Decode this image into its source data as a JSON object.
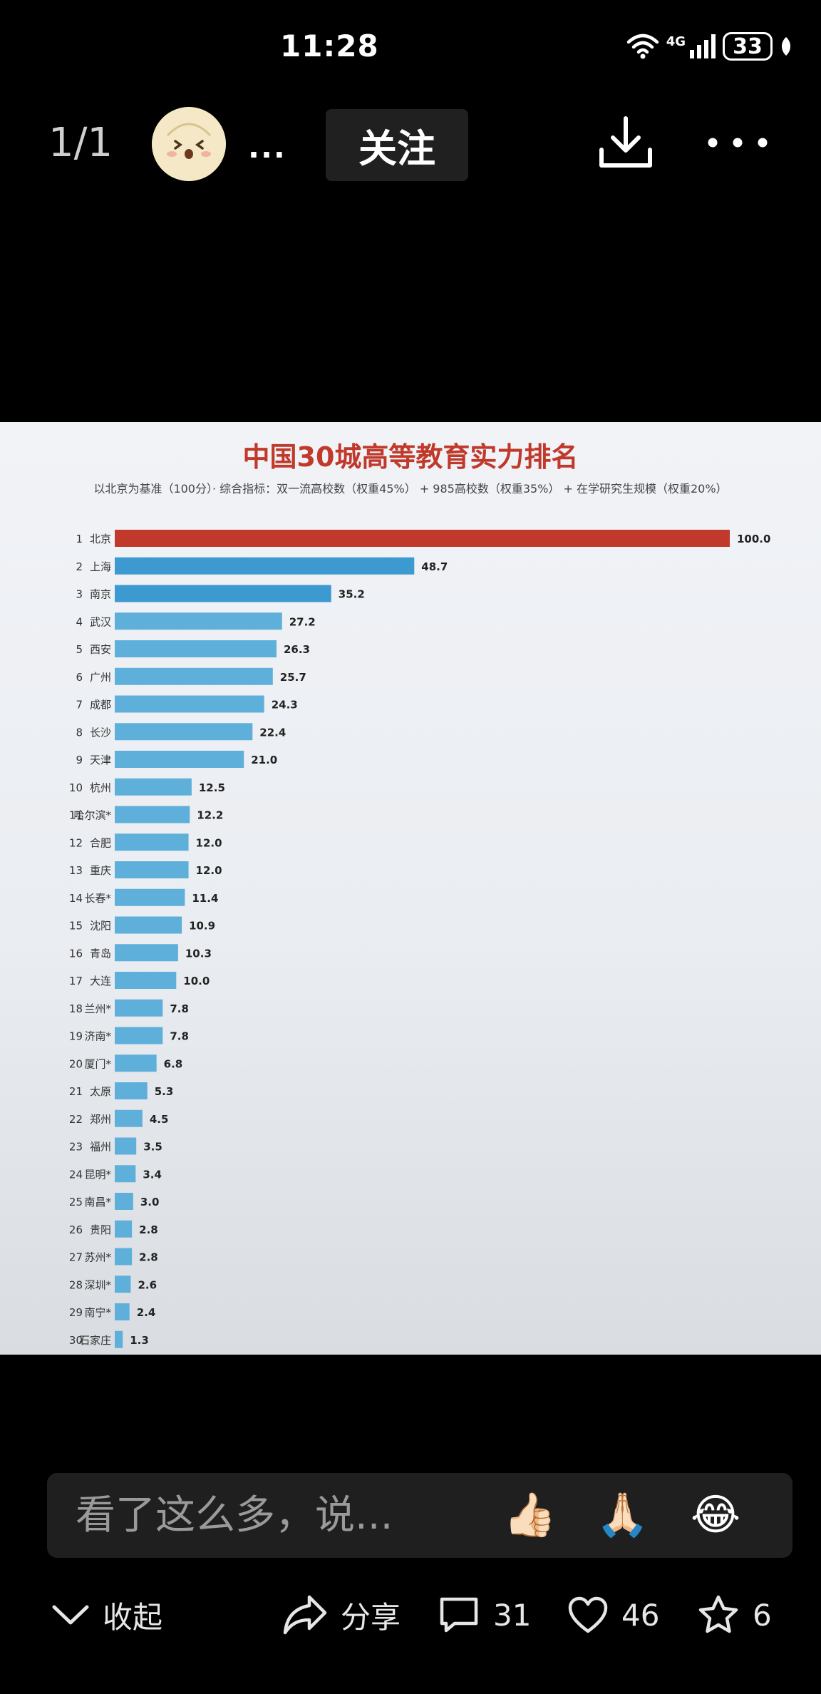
{
  "status_bar": {
    "time": "11:28",
    "network": "4G",
    "battery": "33"
  },
  "top_bar": {
    "page_indicator": "1/1",
    "more": "...",
    "follow_label": "关注"
  },
  "chart_data": {
    "type": "bar",
    "title": "中国30城高等教育实力排名",
    "subtitle": "以北京为基准（100分）· 综合指标：双一流高校数（权重45%） + 985高校数（权重35%） + 在学研究生规模（权重20%）",
    "ylim": [
      0,
      100
    ],
    "colors": {
      "first": "#c0392b",
      "top": "#3d9ad1",
      "rest": "#5eb0da"
    },
    "categories": [
      "北京",
      "上海",
      "南京",
      "武汉",
      "西安",
      "广州",
      "成都",
      "长沙",
      "天津",
      "杭州",
      "哈尔滨*",
      "合肥",
      "重庆",
      "长春*",
      "沈阳",
      "青岛",
      "大连",
      "兰州*",
      "济南*",
      "厦门*",
      "太原",
      "郑州",
      "福州",
      "昆明*",
      "南昌*",
      "贵阳",
      "苏州*",
      "深圳*",
      "南宁*",
      "石家庄"
    ],
    "values": [
      100.0,
      48.7,
      35.2,
      27.2,
      26.3,
      25.7,
      24.3,
      22.4,
      21.0,
      12.5,
      12.2,
      12.0,
      12.0,
      11.4,
      10.9,
      10.3,
      10.0,
      7.8,
      7.8,
      6.8,
      5.3,
      4.5,
      3.5,
      3.4,
      3.0,
      2.8,
      2.8,
      2.6,
      2.4,
      1.3
    ],
    "value_labels": [
      "100.0",
      "48.7",
      "35.2",
      "27.2",
      "26.3",
      "25.7",
      "24.3",
      "22.4",
      "21.0",
      "12.5",
      "12.2",
      "12.0",
      "12.0",
      "11.4",
      "10.9",
      "10.3",
      "10.0",
      "7.8",
      "7.8",
      "6.8",
      "5.3",
      "4.5",
      "3.5",
      "3.4",
      "3.0",
      "2.8",
      "2.8",
      "2.6",
      "2.4",
      "1.3"
    ]
  },
  "comment_bar": {
    "placeholder": "看了这么多，说...",
    "emojis": [
      "👍🏻",
      "🙏🏻",
      "😂"
    ]
  },
  "bottom_bar": {
    "collapse_label": "收起",
    "share_label": "分享",
    "comment_count": "31",
    "like_count": "46",
    "favorite_count": "6"
  }
}
